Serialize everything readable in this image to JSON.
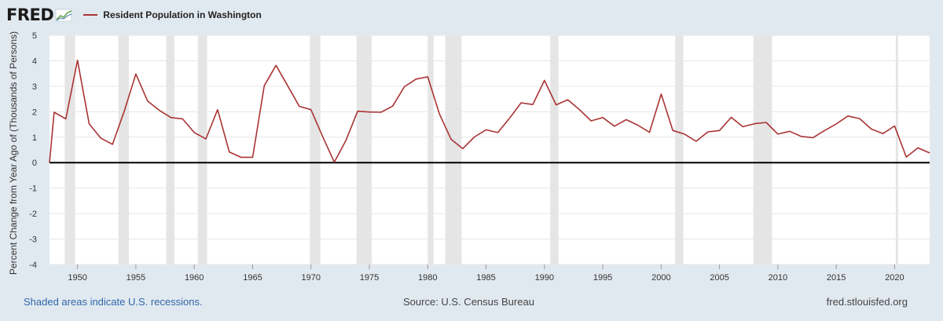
{
  "header": {
    "logo_text": "FRED",
    "logo_icon": "line-chart-icon",
    "legend_label": "Resident Population in Washington",
    "series_color": "#aa3333"
  },
  "footer": {
    "recessions_note": "Shaded areas indicate U.S. recessions.",
    "source": "Source: U.S. Census Bureau",
    "site": "fred.stlouisfed.org"
  },
  "chart_data": {
    "type": "line",
    "title": "",
    "xlabel": "",
    "ylabel": "Percent Change from Year Ago of (Thousands of Persons)",
    "xlim": [
      1947.6,
      2023
    ],
    "ylim": [
      -4,
      5
    ],
    "x_ticks": [
      1950,
      1955,
      1960,
      1965,
      1970,
      1975,
      1980,
      1985,
      1990,
      1995,
      2000,
      2005,
      2010,
      2015,
      2020
    ],
    "y_ticks": [
      -4,
      -3,
      -2,
      -1,
      0,
      1,
      2,
      3,
      4,
      5
    ],
    "grid": true,
    "legend": "top-left",
    "recessions": [
      [
        1948.9,
        1949.8
      ],
      [
        1953.5,
        1954.4
      ],
      [
        1957.6,
        1958.3
      ],
      [
        1960.3,
        1961.1
      ],
      [
        1969.9,
        1970.8
      ],
      [
        1973.9,
        1975.2
      ],
      [
        1980.0,
        1980.5
      ],
      [
        1981.5,
        1982.9
      ],
      [
        1990.5,
        1991.2
      ],
      [
        2001.2,
        2001.9
      ],
      [
        2007.9,
        2009.5
      ],
      [
        2020.1,
        2020.3
      ]
    ],
    "series": [
      {
        "name": "Resident Population in Washington",
        "x": [
          1947.6,
          1948,
          1949,
          1950,
          1951,
          1952,
          1953,
          1954,
          1955,
          1956,
          1957,
          1958,
          1959,
          1960,
          1961,
          1962,
          1963,
          1964,
          1965,
          1966,
          1967,
          1968,
          1969,
          1970,
          1971,
          1972,
          1973,
          1974,
          1975,
          1976,
          1977,
          1978,
          1979,
          1980,
          1981,
          1982,
          1983,
          1984,
          1985,
          1986,
          1987,
          1988,
          1989,
          1990,
          1991,
          1992,
          1993,
          1994,
          1995,
          1996,
          1997,
          1998,
          1999,
          2000,
          2001,
          2002,
          2003,
          2004,
          2005,
          2006,
          2007,
          2008,
          2009,
          2010,
          2011,
          2012,
          2013,
          2014,
          2015,
          2016,
          2017,
          2018,
          2019,
          2020,
          2021,
          2022,
          2023
        ],
        "values": [
          0.0,
          1.98,
          1.72,
          4.02,
          1.52,
          0.96,
          0.72,
          2.02,
          3.48,
          2.42,
          2.06,
          1.77,
          1.72,
          1.18,
          0.93,
          2.08,
          0.42,
          0.21,
          0.21,
          3.02,
          3.82,
          3.02,
          2.21,
          2.08,
          1.02,
          0.02,
          0.88,
          2.02,
          1.99,
          1.98,
          2.22,
          2.98,
          3.28,
          3.37,
          1.92,
          0.92,
          0.55,
          1.01,
          1.29,
          1.18,
          1.74,
          2.35,
          2.28,
          3.23,
          2.27,
          2.47,
          2.08,
          1.64,
          1.77,
          1.43,
          1.69,
          1.47,
          1.19,
          2.69,
          1.26,
          1.12,
          0.84,
          1.21,
          1.26,
          1.78,
          1.41,
          1.53,
          1.58,
          1.12,
          1.23,
          1.03,
          0.98,
          1.26,
          1.52,
          1.83,
          1.73,
          1.32,
          1.14,
          1.44,
          0.22,
          0.58,
          0.38
        ]
      }
    ]
  }
}
